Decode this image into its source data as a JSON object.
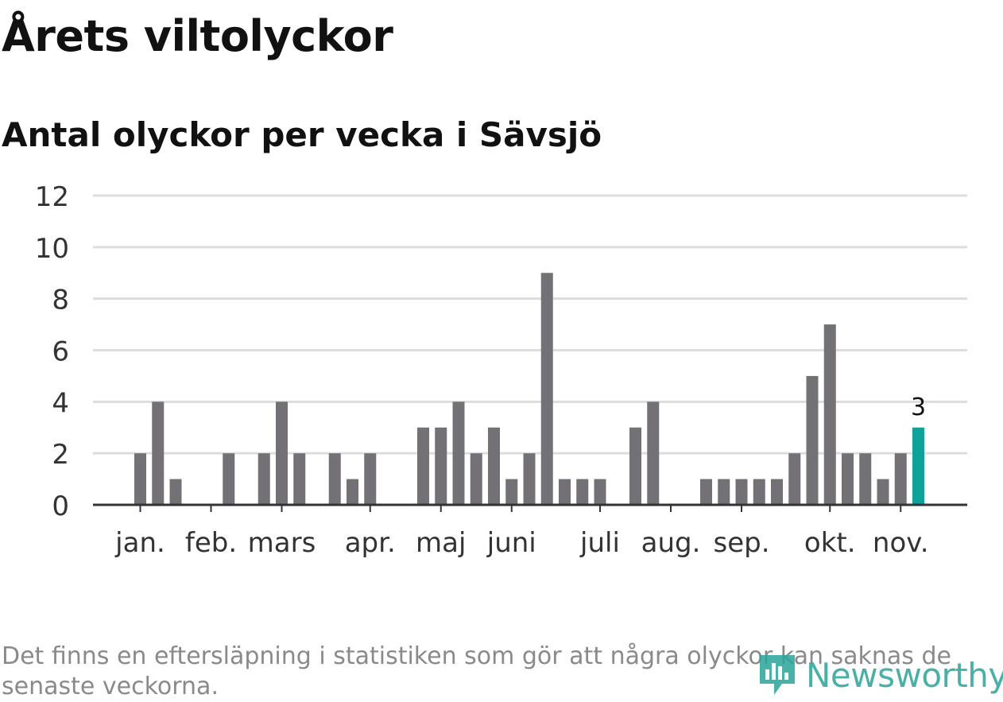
{
  "header": {
    "title": "Årets viltolyckor",
    "subtitle": "Antal olyckor per vecka i Sävsjö"
  },
  "footnote": "Det finns en eftersläpning i statistiken som gör att några olyckor kan saknas de senaste veckorna.",
  "logo": {
    "text": "Newsworthy",
    "color": "#2aa39a"
  },
  "colors": {
    "bar": "#737176",
    "highlight": "#0ea39a",
    "grid": "#dddddd",
    "axis": "#333333"
  },
  "chart_data": {
    "type": "bar",
    "title": "",
    "xlabel": "",
    "ylabel": "",
    "ylim": [
      0,
      12
    ],
    "yticks": [
      0,
      2,
      4,
      6,
      8,
      10,
      12
    ],
    "grid": true,
    "month_ticks": [
      {
        "label": "jan.",
        "week": 1
      },
      {
        "label": "feb.",
        "week": 5
      },
      {
        "label": "mars",
        "week": 9
      },
      {
        "label": "apr.",
        "week": 14
      },
      {
        "label": "maj",
        "week": 18
      },
      {
        "label": "juni",
        "week": 22
      },
      {
        "label": "juli",
        "week": 27
      },
      {
        "label": "aug.",
        "week": 31
      },
      {
        "label": "sep.",
        "week": 35
      },
      {
        "label": "okt.",
        "week": 40
      },
      {
        "label": "nov.",
        "week": 44
      }
    ],
    "weeks": [
      1,
      2,
      3,
      4,
      5,
      6,
      7,
      8,
      9,
      10,
      11,
      12,
      13,
      14,
      15,
      16,
      17,
      18,
      19,
      20,
      21,
      22,
      23,
      24,
      25,
      26,
      27,
      28,
      29,
      30,
      31,
      32,
      33,
      34,
      35,
      36,
      37,
      38,
      39,
      40,
      41,
      42,
      43,
      44,
      45
    ],
    "values": [
      2,
      4,
      1,
      0,
      0,
      2,
      0,
      2,
      4,
      2,
      0,
      2,
      1,
      2,
      0,
      0,
      3,
      3,
      4,
      2,
      3,
      1,
      2,
      9,
      1,
      1,
      1,
      0,
      3,
      4,
      0,
      0,
      1,
      1,
      1,
      1,
      1,
      2,
      5,
      7,
      2,
      2,
      1,
      2,
      3
    ],
    "highlight_index": 44,
    "highlight_label": "3"
  }
}
